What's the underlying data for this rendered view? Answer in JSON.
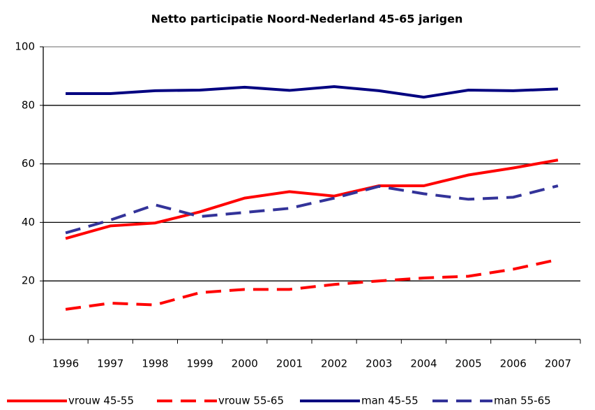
{
  "chart_data": {
    "type": "line",
    "title": "Netto participatie Noord-Nederland 45-65 jarigen",
    "categories": [
      "1996",
      "1997",
      "1998",
      "1999",
      "2000",
      "2001",
      "2002",
      "2003",
      "2004",
      "2005",
      "2006",
      "2007"
    ],
    "series": [
      {
        "name": "vrouw 45-55",
        "color": "#ff0000",
        "dashed": false,
        "values": [
          34.5,
          38.8,
          39.8,
          43.6,
          48.3,
          50.5,
          49,
          52.5,
          52.5,
          56.2,
          58.6,
          61.3
        ]
      },
      {
        "name": "vrouw 55-65",
        "color": "#ff0000",
        "dashed": true,
        "values": [
          10.3,
          12.4,
          11.8,
          16,
          17.1,
          17.1,
          18.8,
          20,
          21,
          21.6,
          24,
          27.3
        ]
      },
      {
        "name": "man 45-55",
        "color": "#000080",
        "dashed": false,
        "values": [
          84,
          84,
          85,
          85.2,
          86.2,
          85.1,
          86.4,
          85,
          82.8,
          85.2,
          85,
          85.6
        ]
      },
      {
        "name": "man 55-65",
        "color": "#333399",
        "dashed": true,
        "values": [
          36.4,
          40.8,
          46,
          42,
          43.4,
          44.8,
          48.3,
          52.3,
          49.8,
          47.9,
          48.6,
          52.5
        ]
      }
    ],
    "ylim": [
      0,
      100
    ],
    "yticks": [
      0,
      20,
      40,
      60,
      80,
      100
    ],
    "grid": true
  }
}
